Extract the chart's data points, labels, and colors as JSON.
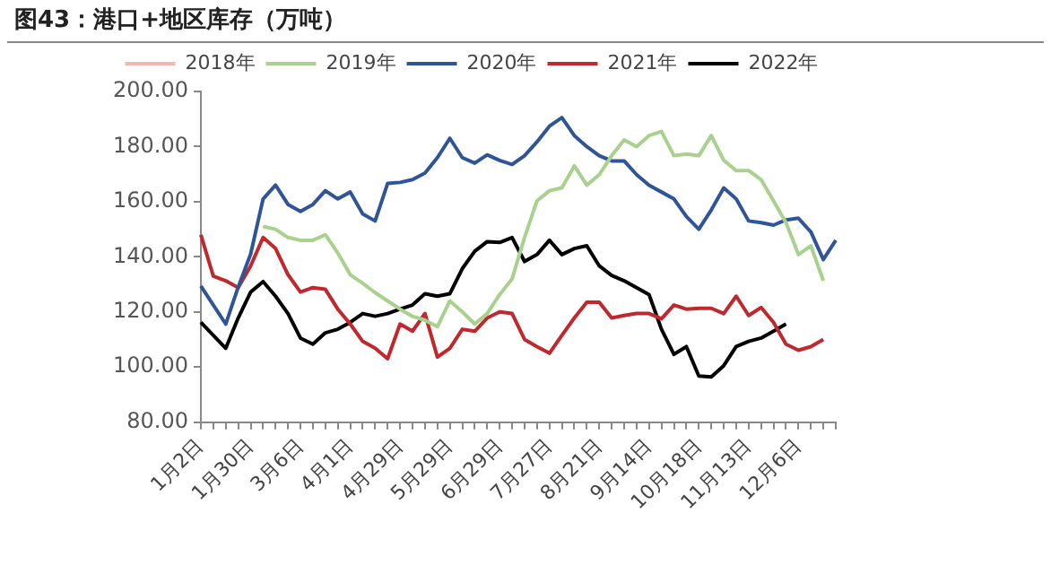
{
  "chart_data": {
    "type": "line",
    "title": "图43：港口+地区库存（万吨）",
    "categories": [
      "1月2日",
      null,
      null,
      null,
      "1月30日",
      null,
      null,
      null,
      "3月6日",
      null,
      null,
      null,
      "4月1日",
      null,
      null,
      null,
      "4月29日",
      null,
      null,
      null,
      "5月29日",
      null,
      null,
      null,
      "6月29日",
      null,
      null,
      null,
      "7月27日",
      null,
      null,
      null,
      "8月21日",
      null,
      null,
      null,
      "9月14日",
      null,
      null,
      null,
      "10月18日",
      null,
      null,
      null,
      "11月13日",
      null,
      null,
      null,
      "12月6日",
      null,
      null,
      null
    ],
    "series": [
      {
        "name": "2018年",
        "color": "#f4b5b5",
        "values": [
          null,
          null,
          null,
          null,
          null,
          null,
          null,
          null,
          null,
          null,
          null,
          null,
          null,
          null,
          null,
          null,
          null,
          null,
          null,
          null,
          null,
          null,
          null,
          null,
          null,
          null,
          null,
          null,
          null,
          null,
          null,
          null,
          null,
          null,
          null,
          null,
          null,
          null,
          null,
          null,
          null,
          null,
          null,
          null,
          null,
          null,
          null,
          null,
          null,
          null,
          null,
          null
        ]
      },
      {
        "name": "2019年",
        "color": "#a9d18e",
        "values": [
          null,
          null,
          null,
          null,
          null,
          151,
          150,
          147,
          146,
          146,
          148,
          141.4,
          133.5,
          130.4,
          127,
          124,
          121,
          118.4,
          117,
          114.6,
          124,
          120,
          115.6,
          119.4,
          126.3,
          132,
          147,
          160.3,
          164,
          165,
          173,
          166,
          169.8,
          176.7,
          182.4,
          180,
          184,
          185.5,
          176.7,
          177.3,
          176.7,
          184,
          175,
          171.3,
          171.3,
          168,
          160.3,
          152.4,
          140.8,
          144,
          131.3,
          null
        ]
      },
      {
        "name": "2020年",
        "color": "#2f5597",
        "values": [
          129.4,
          122.5,
          115.6,
          129,
          141,
          161,
          166,
          159,
          156.5,
          159,
          164,
          161,
          163.5,
          155.6,
          153,
          166.6,
          167,
          168,
          170.4,
          176,
          183,
          176,
          174,
          177,
          175,
          173.5,
          176.7,
          181.7,
          187.4,
          190.5,
          184,
          180,
          176.7,
          174.8,
          174.8,
          169.8,
          166,
          163.5,
          161,
          154.6,
          150,
          157,
          165,
          161,
          153,
          152.4,
          151.5,
          153.4,
          154,
          149,
          139,
          146
        ]
      },
      {
        "name": "2021年",
        "color": "#c0282d",
        "values": [
          148,
          133,
          131.3,
          128.8,
          136.7,
          147,
          143,
          133.5,
          127.2,
          128.8,
          128.2,
          121,
          115.6,
          109.3,
          106.8,
          103,
          115.6,
          113,
          119.4,
          103.6,
          106.8,
          113.7,
          113,
          117.8,
          120,
          119.4,
          110,
          107.4,
          105,
          111.5,
          117.8,
          123.5,
          123.5,
          117.8,
          118.7,
          119.4,
          119.4,
          117.5,
          122.5,
          121,
          121.3,
          121.3,
          119.4,
          125.7,
          118.7,
          121.6,
          116.2,
          108.3,
          106.1,
          107.4,
          110,
          null
        ]
      },
      {
        "name": "2022年",
        "color": "#000000",
        "values": [
          116.2,
          111.5,
          106.8,
          117.8,
          127.2,
          131,
          125.7,
          119.4,
          110.5,
          108.3,
          112.4,
          113.7,
          116.2,
          119.4,
          118.4,
          119.4,
          121,
          122.5,
          126.6,
          125.7,
          126.6,
          135.7,
          142,
          145.5,
          145.2,
          147,
          138.3,
          140.8,
          146,
          140.8,
          143,
          144,
          136.7,
          133.2,
          131.3,
          128.8,
          126.3,
          113.7,
          104.6,
          107.4,
          96.7,
          96.4,
          100.5,
          107.4,
          109.3,
          110.5,
          113,
          115.6,
          null,
          null,
          null,
          null
        ]
      }
    ],
    "ylim": [
      80,
      200
    ],
    "yticks": [
      {
        "value": 80,
        "label": "80.00"
      },
      {
        "value": 100,
        "label": "100.00"
      },
      {
        "value": 120,
        "label": "120.00"
      },
      {
        "value": 140,
        "label": "140.00"
      },
      {
        "value": 160,
        "label": "160.00"
      },
      {
        "value": 180,
        "label": "180.00"
      },
      {
        "value": 200,
        "label": "200.00"
      }
    ],
    "grid": false,
    "legend": "top",
    "marker": "none",
    "line_style": "solid"
  }
}
